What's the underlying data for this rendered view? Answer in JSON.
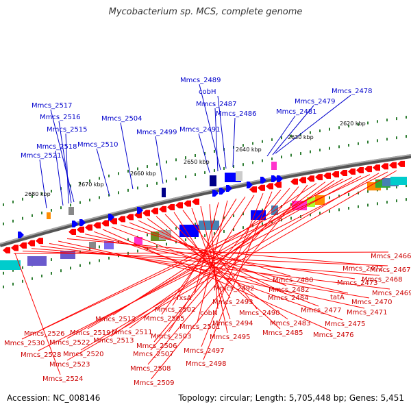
{
  "title": "Mycobacterium sp. MCS, complete genome",
  "footer": {
    "accession": "Accession: NC_008146",
    "summary": "Topology: circular; Length: 5,705,448 bp; Genes: 5,451"
  },
  "colors": {
    "reverse_gene": "#ff0000",
    "forward_gene": "#0000ff",
    "reverse_label": "#cc0000",
    "forward_label": "#0000cc",
    "tick": "#2e7d32",
    "backbone": "#808080"
  },
  "ticks": [
    "2620 kbp",
    "2630 kbp",
    "2640 kbp",
    "2650 kbp",
    "2660 kbp",
    "2670 kbp",
    "2680 kbp"
  ],
  "forward_labels": [
    "Mmcs_2517",
    "Mmcs_2516",
    "Mmcs_2515",
    "Mmcs_2518",
    "Mmcs_2521",
    "Mmcs_2510",
    "Mmcs_2504",
    "Mmcs_2499",
    "Mmcs_2489",
    "cobH",
    "Mmcs_2487",
    "Mmcs_2486",
    "Mmcs_2491",
    "Mmcs_2481",
    "Mmcs_2479",
    "Mmcs_2478"
  ],
  "reverse_labels": [
    "Mmcs_2466",
    "Mmcs_2467",
    "Mmcs_2468",
    "Mmcs_2469",
    "Mmcs_2470",
    "Mmcs_2471",
    "Mmcs_2472",
    "Mmcs_2473",
    "tatA",
    "Mmcs_2475",
    "Mmcs_2476",
    "Mmcs_2477",
    "Mmcs_2480",
    "Mmcs_2482",
    "Mmcs_2484",
    "Mmcs_2483",
    "Mmcs_2485",
    "Mmcs_2492",
    "Mmcs_2493",
    "Mmcs_2490",
    "Mmcs_2494",
    "Mmcs_2495",
    "cobN",
    "fxsA",
    "Mmcs_2501",
    "Mmcs_2502",
    "Mmcs_2505",
    "Mmcs_2503",
    "Mmcs_2497",
    "Mmcs_2498",
    "Mmcs_2506",
    "Mmcs_2507",
    "Mmcs_2508",
    "Mmcs_2509",
    "Mmcs_2512",
    "Mmcs_2511",
    "Mmcs_2513",
    "Mmcs_2519",
    "Mmcs_2526",
    "Mmcs_2522",
    "Mmcs_2530",
    "Mmcs_2520",
    "Mmcs_2528",
    "Mmcs_2523",
    "Mmcs_2524"
  ]
}
